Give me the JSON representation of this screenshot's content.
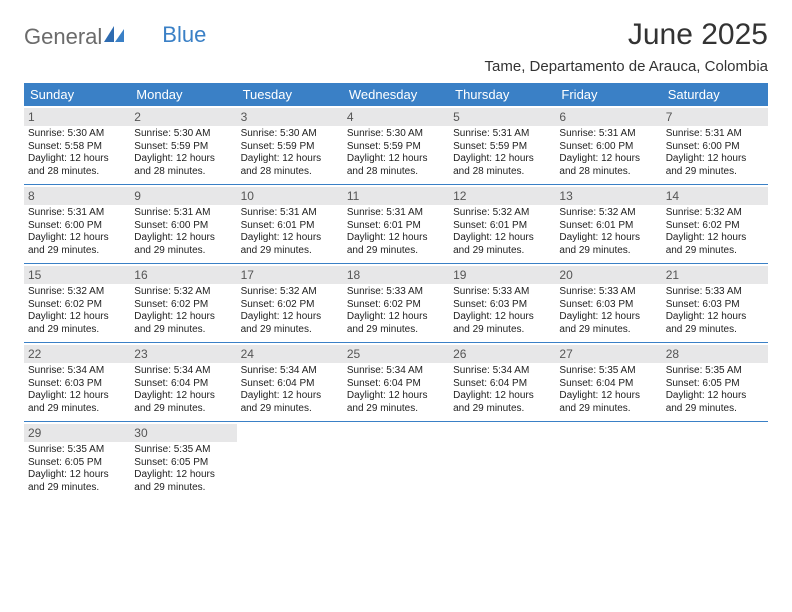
{
  "logo": {
    "word1": "General",
    "word2": "Blue"
  },
  "title": "June 2025",
  "subtitle": "Tame, Departamento de Arauca, Colombia",
  "day_headers": [
    "Sunday",
    "Monday",
    "Tuesday",
    "Wednesday",
    "Thursday",
    "Friday",
    "Saturday"
  ],
  "colors": {
    "header_bg": "#3a80c6",
    "header_text": "#ffffff",
    "daynum_bg": "#e7e7e8",
    "rule": "#3a80c6",
    "logo_gray": "#6b6b6b",
    "logo_blue": "#3a80c6"
  },
  "weeks": [
    [
      {
        "n": "1",
        "sr": "Sunrise: 5:30 AM",
        "ss": "Sunset: 5:58 PM",
        "d1": "Daylight: 12 hours",
        "d2": "and 28 minutes."
      },
      {
        "n": "2",
        "sr": "Sunrise: 5:30 AM",
        "ss": "Sunset: 5:59 PM",
        "d1": "Daylight: 12 hours",
        "d2": "and 28 minutes."
      },
      {
        "n": "3",
        "sr": "Sunrise: 5:30 AM",
        "ss": "Sunset: 5:59 PM",
        "d1": "Daylight: 12 hours",
        "d2": "and 28 minutes."
      },
      {
        "n": "4",
        "sr": "Sunrise: 5:30 AM",
        "ss": "Sunset: 5:59 PM",
        "d1": "Daylight: 12 hours",
        "d2": "and 28 minutes."
      },
      {
        "n": "5",
        "sr": "Sunrise: 5:31 AM",
        "ss": "Sunset: 5:59 PM",
        "d1": "Daylight: 12 hours",
        "d2": "and 28 minutes."
      },
      {
        "n": "6",
        "sr": "Sunrise: 5:31 AM",
        "ss": "Sunset: 6:00 PM",
        "d1": "Daylight: 12 hours",
        "d2": "and 28 minutes."
      },
      {
        "n": "7",
        "sr": "Sunrise: 5:31 AM",
        "ss": "Sunset: 6:00 PM",
        "d1": "Daylight: 12 hours",
        "d2": "and 29 minutes."
      }
    ],
    [
      {
        "n": "8",
        "sr": "Sunrise: 5:31 AM",
        "ss": "Sunset: 6:00 PM",
        "d1": "Daylight: 12 hours",
        "d2": "and 29 minutes."
      },
      {
        "n": "9",
        "sr": "Sunrise: 5:31 AM",
        "ss": "Sunset: 6:00 PM",
        "d1": "Daylight: 12 hours",
        "d2": "and 29 minutes."
      },
      {
        "n": "10",
        "sr": "Sunrise: 5:31 AM",
        "ss": "Sunset: 6:01 PM",
        "d1": "Daylight: 12 hours",
        "d2": "and 29 minutes."
      },
      {
        "n": "11",
        "sr": "Sunrise: 5:31 AM",
        "ss": "Sunset: 6:01 PM",
        "d1": "Daylight: 12 hours",
        "d2": "and 29 minutes."
      },
      {
        "n": "12",
        "sr": "Sunrise: 5:32 AM",
        "ss": "Sunset: 6:01 PM",
        "d1": "Daylight: 12 hours",
        "d2": "and 29 minutes."
      },
      {
        "n": "13",
        "sr": "Sunrise: 5:32 AM",
        "ss": "Sunset: 6:01 PM",
        "d1": "Daylight: 12 hours",
        "d2": "and 29 minutes."
      },
      {
        "n": "14",
        "sr": "Sunrise: 5:32 AM",
        "ss": "Sunset: 6:02 PM",
        "d1": "Daylight: 12 hours",
        "d2": "and 29 minutes."
      }
    ],
    [
      {
        "n": "15",
        "sr": "Sunrise: 5:32 AM",
        "ss": "Sunset: 6:02 PM",
        "d1": "Daylight: 12 hours",
        "d2": "and 29 minutes."
      },
      {
        "n": "16",
        "sr": "Sunrise: 5:32 AM",
        "ss": "Sunset: 6:02 PM",
        "d1": "Daylight: 12 hours",
        "d2": "and 29 minutes."
      },
      {
        "n": "17",
        "sr": "Sunrise: 5:32 AM",
        "ss": "Sunset: 6:02 PM",
        "d1": "Daylight: 12 hours",
        "d2": "and 29 minutes."
      },
      {
        "n": "18",
        "sr": "Sunrise: 5:33 AM",
        "ss": "Sunset: 6:02 PM",
        "d1": "Daylight: 12 hours",
        "d2": "and 29 minutes."
      },
      {
        "n": "19",
        "sr": "Sunrise: 5:33 AM",
        "ss": "Sunset: 6:03 PM",
        "d1": "Daylight: 12 hours",
        "d2": "and 29 minutes."
      },
      {
        "n": "20",
        "sr": "Sunrise: 5:33 AM",
        "ss": "Sunset: 6:03 PM",
        "d1": "Daylight: 12 hours",
        "d2": "and 29 minutes."
      },
      {
        "n": "21",
        "sr": "Sunrise: 5:33 AM",
        "ss": "Sunset: 6:03 PM",
        "d1": "Daylight: 12 hours",
        "d2": "and 29 minutes."
      }
    ],
    [
      {
        "n": "22",
        "sr": "Sunrise: 5:34 AM",
        "ss": "Sunset: 6:03 PM",
        "d1": "Daylight: 12 hours",
        "d2": "and 29 minutes."
      },
      {
        "n": "23",
        "sr": "Sunrise: 5:34 AM",
        "ss": "Sunset: 6:04 PM",
        "d1": "Daylight: 12 hours",
        "d2": "and 29 minutes."
      },
      {
        "n": "24",
        "sr": "Sunrise: 5:34 AM",
        "ss": "Sunset: 6:04 PM",
        "d1": "Daylight: 12 hours",
        "d2": "and 29 minutes."
      },
      {
        "n": "25",
        "sr": "Sunrise: 5:34 AM",
        "ss": "Sunset: 6:04 PM",
        "d1": "Daylight: 12 hours",
        "d2": "and 29 minutes."
      },
      {
        "n": "26",
        "sr": "Sunrise: 5:34 AM",
        "ss": "Sunset: 6:04 PM",
        "d1": "Daylight: 12 hours",
        "d2": "and 29 minutes."
      },
      {
        "n": "27",
        "sr": "Sunrise: 5:35 AM",
        "ss": "Sunset: 6:04 PM",
        "d1": "Daylight: 12 hours",
        "d2": "and 29 minutes."
      },
      {
        "n": "28",
        "sr": "Sunrise: 5:35 AM",
        "ss": "Sunset: 6:05 PM",
        "d1": "Daylight: 12 hours",
        "d2": "and 29 minutes."
      }
    ],
    [
      {
        "n": "29",
        "sr": "Sunrise: 5:35 AM",
        "ss": "Sunset: 6:05 PM",
        "d1": "Daylight: 12 hours",
        "d2": "and 29 minutes."
      },
      {
        "n": "30",
        "sr": "Sunrise: 5:35 AM",
        "ss": "Sunset: 6:05 PM",
        "d1": "Daylight: 12 hours",
        "d2": "and 29 minutes."
      },
      {
        "empty": true
      },
      {
        "empty": true
      },
      {
        "empty": true
      },
      {
        "empty": true
      },
      {
        "empty": true
      }
    ]
  ]
}
